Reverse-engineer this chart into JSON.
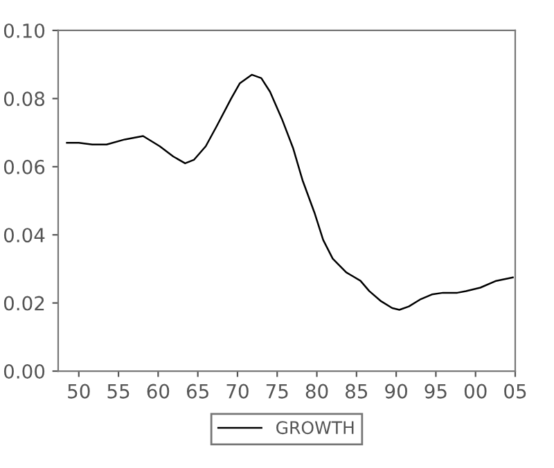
{
  "chart_data": {
    "type": "line",
    "legend": "bottom",
    "grid": false,
    "marker": "none",
    "line_style": "solid",
    "x": [
      1948.5,
      1950,
      1951.7,
      1953.5,
      1955.8,
      1958.1,
      1960.2,
      1961.9,
      1963.4,
      1964.5,
      1966,
      1967.4,
      1969.2,
      1970.3,
      1971.8,
      1973,
      1974.1,
      1975.6,
      1977,
      1978.2,
      1979.7,
      1980.8,
      1982,
      1983.7,
      1985.5,
      1986.6,
      1988.1,
      1989.5,
      1990.4,
      1991.6,
      1993,
      1994.5,
      1995.9,
      1997.7,
      1998.8,
      2000.6,
      2002.6,
      2004.7
    ],
    "series": [
      {
        "name": "GROWTH",
        "color": "#000000",
        "values": [
          0.067,
          0.067,
          0.0665,
          0.0665,
          0.068,
          0.069,
          0.066,
          0.063,
          0.061,
          0.062,
          0.066,
          0.072,
          0.08,
          0.0845,
          0.087,
          0.086,
          0.082,
          0.074,
          0.0655,
          0.056,
          0.0465,
          0.0385,
          0.033,
          0.029,
          0.0265,
          0.0235,
          0.0205,
          0.0185,
          0.018,
          0.019,
          0.021,
          0.0225,
          0.023,
          0.023,
          0.0235,
          0.0245,
          0.0265,
          0.0275
        ]
      }
    ],
    "xlim": [
      1947.4,
      2005
    ],
    "xticks": [
      {
        "value": 1950,
        "label": "50"
      },
      {
        "value": 1955,
        "label": "55"
      },
      {
        "value": 1960,
        "label": "60"
      },
      {
        "value": 1965,
        "label": "65"
      },
      {
        "value": 1970,
        "label": "70"
      },
      {
        "value": 1975,
        "label": "75"
      },
      {
        "value": 1980,
        "label": "80"
      },
      {
        "value": 1985,
        "label": "85"
      },
      {
        "value": 1990,
        "label": "90"
      },
      {
        "value": 1995,
        "label": "95"
      },
      {
        "value": 2000,
        "label": "00"
      },
      {
        "value": 2005,
        "label": "05"
      }
    ],
    "ylim": [
      0,
      0.1
    ],
    "yticks": [
      {
        "value": 0,
        "label": "0.00"
      },
      {
        "value": 0.02,
        "label": "0.02"
      },
      {
        "value": 0.04,
        "label": "0.04"
      },
      {
        "value": 0.06,
        "label": "0.06"
      },
      {
        "value": 0.08,
        "label": "0.08"
      },
      {
        "value": 0.1,
        "label": "0.10"
      }
    ]
  }
}
